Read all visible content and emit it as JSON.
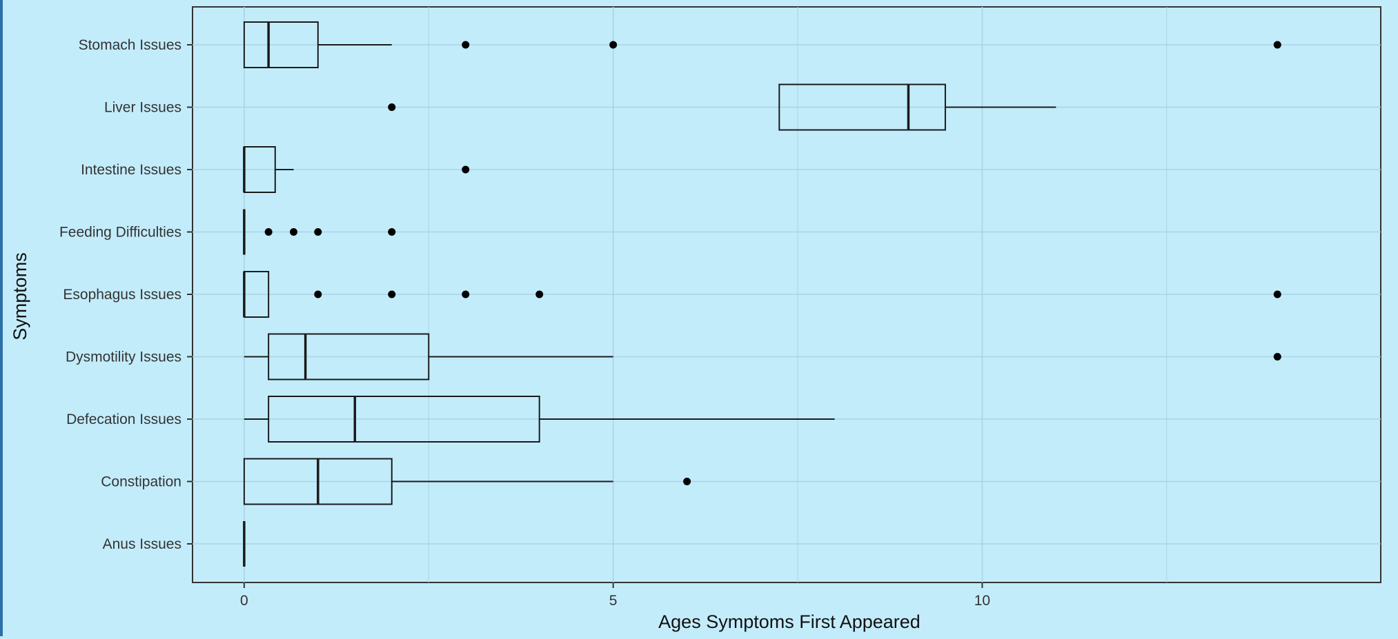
{
  "chart_data": {
    "type": "boxplot",
    "orientation": "horizontal",
    "xlabel": "Ages Symptoms First Appeared",
    "ylabel": "Symptoms",
    "xlim": [
      -0.7,
      15.4
    ],
    "xticks": [
      0,
      5,
      10
    ],
    "grid": true,
    "legend": "none",
    "colors": {
      "panel": "#c3ecfb",
      "grid": "#a9d3e4",
      "stroke": "#1a1a1a"
    },
    "categories": [
      "Stomach Issues",
      "Liver Issues",
      "Intestine Issues",
      "Feeding Difficulties",
      "Esophagus Issues",
      "Dysmotility Issues",
      "Defecation Issues",
      "Constipation",
      "Anus Issues"
    ],
    "boxes": [
      {
        "category": "Stomach Issues",
        "whisker_low": 0,
        "q1": 0,
        "median": 0.33,
        "q3": 1.0,
        "whisker_high": 2.0,
        "outliers": [
          3,
          5,
          14
        ]
      },
      {
        "category": "Liver Issues",
        "whisker_low": 7.25,
        "q1": 7.25,
        "median": 9.0,
        "q3": 9.5,
        "whisker_high": 11.0,
        "outliers": [
          2
        ]
      },
      {
        "category": "Intestine Issues",
        "whisker_low": 0,
        "q1": 0,
        "median": 0,
        "q3": 0.42,
        "whisker_high": 0.67,
        "outliers": [
          3
        ]
      },
      {
        "category": "Feeding Difficulties",
        "whisker_low": 0,
        "q1": 0,
        "median": 0,
        "q3": 0,
        "whisker_high": 0,
        "outliers": [
          0.33,
          0.67,
          1,
          2
        ]
      },
      {
        "category": "Esophagus Issues",
        "whisker_low": 0,
        "q1": 0,
        "median": 0,
        "q3": 0.33,
        "whisker_high": 0.33,
        "outliers": [
          1,
          2,
          3,
          4,
          14
        ]
      },
      {
        "category": "Dysmotility Issues",
        "whisker_low": 0,
        "q1": 0.33,
        "median": 0.83,
        "q3": 2.5,
        "whisker_high": 5.0,
        "outliers": [
          14
        ]
      },
      {
        "category": "Defecation Issues",
        "whisker_low": 0,
        "q1": 0.33,
        "median": 1.5,
        "q3": 4.0,
        "whisker_high": 8.0,
        "outliers": []
      },
      {
        "category": "Constipation",
        "whisker_low": 0,
        "q1": 0,
        "median": 1.0,
        "q3": 2.0,
        "whisker_high": 5.0,
        "outliers": [
          6
        ]
      },
      {
        "category": "Anus Issues",
        "whisker_low": 0,
        "q1": 0,
        "median": 0,
        "q3": 0,
        "whisker_high": 0,
        "outliers": []
      }
    ]
  }
}
